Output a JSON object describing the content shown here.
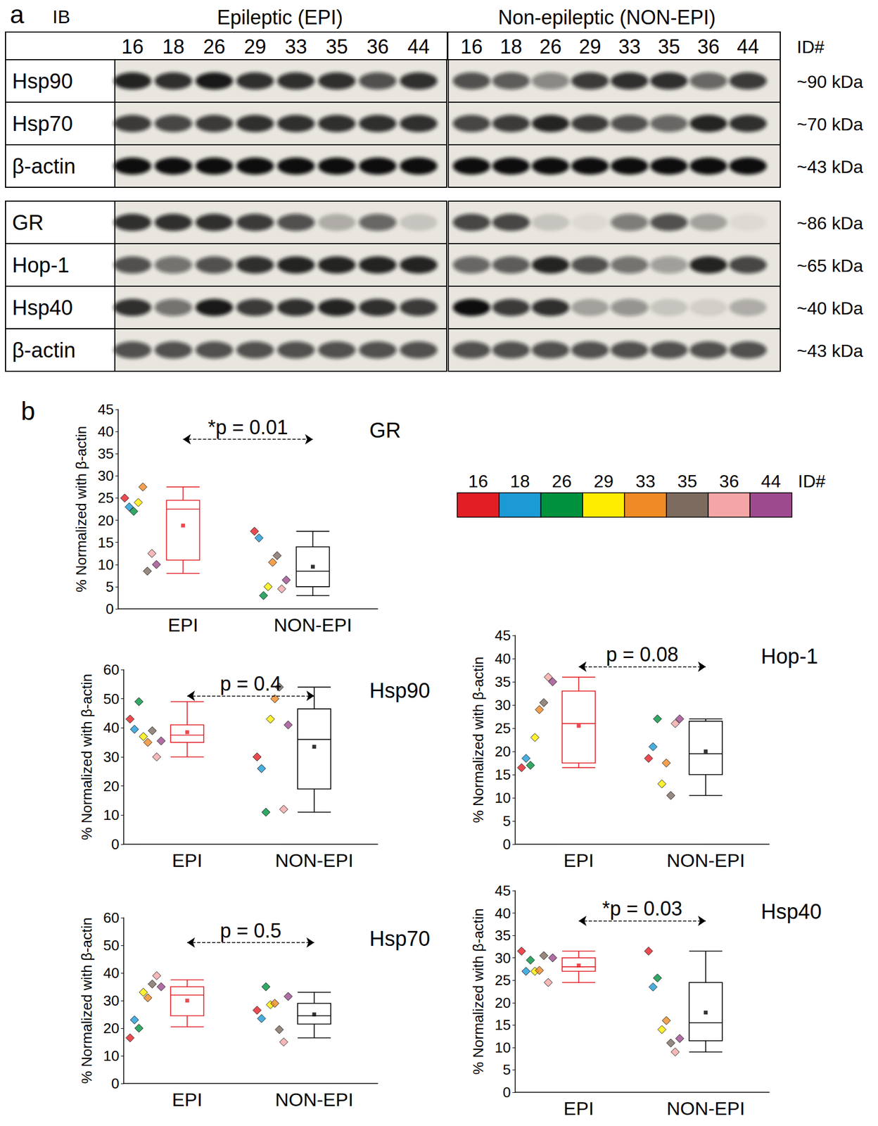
{
  "panel_labels": [
    "a",
    "b"
  ],
  "id_key": {
    "title": "ID#",
    "ids": [
      "16",
      "18",
      "26",
      "29",
      "33",
      "35",
      "36",
      "44"
    ],
    "colors": [
      "#e31e24",
      "#1c9ad6",
      "#00913f",
      "#ffed00",
      "#f08a24",
      "#7d6b5f",
      "#f4a6a6",
      "#9e4a8e"
    ]
  },
  "blot": {
    "ib": "IB",
    "groups": [
      "Epileptic (EPI)",
      "Non-epileptic (NON-EPI)"
    ],
    "id_header": "ID#",
    "blocks": [
      {
        "rows": [
          {
            "name": "Hsp90",
            "size": "~90 kDa",
            "bands": [
              [
                0.9,
                0.85,
                0.95,
                0.85,
                0.85,
                0.85,
                0.7,
                0.85
              ],
              [
                0.7,
                0.65,
                0.45,
                0.8,
                0.85,
                0.85,
                0.6,
                0.8
              ]
            ]
          },
          {
            "name": "Hsp70",
            "size": "~70 kDa",
            "bands": [
              [
                0.8,
                0.75,
                0.8,
                0.85,
                0.85,
                0.85,
                0.85,
                0.85
              ],
              [
                0.75,
                0.8,
                0.9,
                0.8,
                0.7,
                0.6,
                0.9,
                0.85
              ]
            ]
          },
          {
            "name": "β-actin",
            "size": "~43 kDa",
            "bands": [
              [
                1,
                1,
                1,
                1,
                1,
                1,
                1,
                1
              ],
              [
                1,
                1,
                1,
                1,
                1,
                1,
                1,
                1
              ]
            ]
          }
        ]
      },
      {
        "rows": [
          {
            "name": "GR",
            "size": "~86 kDa",
            "bands": [
              [
                0.85,
                0.85,
                0.85,
                0.8,
                0.7,
                0.25,
                0.6,
                0.15
              ],
              [
                0.75,
                0.75,
                0.15,
                0.05,
                0.5,
                0.7,
                0.3,
                0.05
              ]
            ]
          },
          {
            "name": "Hop-1",
            "size": "~65 kDa",
            "bands": [
              [
                0.7,
                0.55,
                0.7,
                0.85,
                0.9,
                0.9,
                0.9,
                0.9
              ],
              [
                0.6,
                0.65,
                0.9,
                0.7,
                0.55,
                0.35,
                0.9,
                0.75
              ]
            ]
          },
          {
            "name": "Hsp40",
            "size": "~40 kDa",
            "bands": [
              [
                0.85,
                0.55,
                0.95,
                0.8,
                0.85,
                0.9,
                0.85,
                0.8
              ],
              [
                1,
                0.8,
                0.85,
                0.3,
                0.4,
                0.15,
                0.1,
                0.25
              ]
            ]
          },
          {
            "name": "β-actin",
            "size": "~43 kDa",
            "bands": [
              [
                0.7,
                0.7,
                0.7,
                0.7,
                0.7,
                0.7,
                0.7,
                0.7
              ],
              [
                0.7,
                0.7,
                0.7,
                0.7,
                0.7,
                0.7,
                0.7,
                0.7
              ]
            ]
          }
        ]
      }
    ]
  },
  "chart_data": [
    {
      "type": "boxplot",
      "title": "GR",
      "annotation": "*p = 0.01",
      "y_label": "% Normalized with β-actin",
      "categories": [
        "EPI",
        "NON-EPI"
      ],
      "colors": [
        "#e41e26",
        "#000000"
      ],
      "marker": "diamond",
      "grid": false,
      "ylim": [
        0,
        45
      ],
      "yticks": [
        0,
        5,
        10,
        15,
        20,
        25,
        30,
        35,
        40,
        45
      ],
      "boxes": [
        {
          "min": 8,
          "q1": 11,
          "median": 22.5,
          "q3": 24.5,
          "max": 27.5,
          "mean": 18.8
        },
        {
          "min": 3,
          "q1": 5,
          "median": 8.5,
          "q3": 14,
          "max": 17.5,
          "mean": 9.5
        }
      ],
      "points": [
        [
          25,
          23,
          22,
          24,
          27.5,
          8.5,
          12.5,
          10
        ],
        [
          17.5,
          16,
          3,
          5,
          10.5,
          12,
          4.5,
          6.5
        ]
      ]
    },
    {
      "type": "boxplot",
      "title": "Hsp90",
      "annotation": "p = 0.4",
      "y_label": "% Normalized with β-actin",
      "categories": [
        "EPI",
        "NON-EPI"
      ],
      "colors": [
        "#e41e26",
        "#000000"
      ],
      "marker": "diamond",
      "grid": false,
      "ylim": [
        0,
        60
      ],
      "yticks": [
        0,
        10,
        20,
        30,
        40,
        50,
        60
      ],
      "boxes": [
        {
          "min": 30,
          "q1": 35,
          "median": 37.5,
          "q3": 41,
          "max": 49,
          "mean": 38.5
        },
        {
          "min": 11,
          "q1": 19,
          "median": 36,
          "q3": 46.5,
          "max": 54,
          "mean": 33.5
        }
      ],
      "points": [
        [
          43,
          39.5,
          49,
          37,
          35,
          39,
          30,
          35.5
        ],
        [
          30,
          26,
          11,
          43,
          50,
          54,
          12,
          41
        ]
      ]
    },
    {
      "type": "boxplot",
      "title": "Hop-1",
      "annotation": "p = 0.08",
      "y_label": "% Normalized with β-actin",
      "categories": [
        "EPI",
        "NON-EPI"
      ],
      "colors": [
        "#e41e26",
        "#000000"
      ],
      "marker": "diamond",
      "grid": false,
      "ylim": [
        0,
        45
      ],
      "yticks": [
        0,
        5,
        10,
        15,
        20,
        25,
        30,
        35,
        40,
        45
      ],
      "boxes": [
        {
          "min": 16.5,
          "q1": 17.5,
          "median": 26,
          "q3": 33,
          "max": 36,
          "mean": 25.5
        },
        {
          "min": 10.5,
          "q1": 15,
          "median": 19.5,
          "q3": 26.5,
          "max": 27,
          "mean": 20
        }
      ],
      "points": [
        [
          16.5,
          18.5,
          17,
          23,
          29,
          30.5,
          36,
          35
        ],
        [
          18.5,
          21,
          27,
          13,
          17.5,
          10.5,
          26,
          27
        ]
      ]
    },
    {
      "type": "boxplot",
      "title": "Hsp70",
      "annotation": "p = 0.5",
      "y_label": "% Normalized with β-actin",
      "categories": [
        "EPI",
        "NON-EPI"
      ],
      "colors": [
        "#e41e26",
        "#000000"
      ],
      "marker": "diamond",
      "grid": false,
      "ylim": [
        0,
        60
      ],
      "yticks": [
        0,
        10,
        20,
        30,
        40,
        50,
        60
      ],
      "boxes": [
        {
          "min": 20.5,
          "q1": 24.5,
          "median": 32,
          "q3": 35,
          "max": 37.5,
          "mean": 30
        },
        {
          "min": 16.5,
          "q1": 21.5,
          "median": 24.5,
          "q3": 29,
          "max": 33,
          "mean": 25
        }
      ],
      "points": [
        [
          16.5,
          23,
          20,
          33,
          31,
          36,
          39,
          35
        ],
        [
          26.5,
          23.5,
          35,
          28.5,
          29,
          19.5,
          15,
          31.5
        ]
      ]
    },
    {
      "type": "boxplot",
      "title": "Hsp40",
      "annotation": "*p = 0.03",
      "y_label": "% Normalized with β-actin",
      "categories": [
        "EPI",
        "NON-EPI"
      ],
      "colors": [
        "#e41e26",
        "#000000"
      ],
      "marker": "diamond",
      "grid": false,
      "ylim": [
        0,
        45
      ],
      "yticks": [
        0,
        5,
        10,
        15,
        20,
        25,
        30,
        35,
        40,
        45
      ],
      "boxes": [
        {
          "min": 24.5,
          "q1": 27,
          "median": 28,
          "q3": 30,
          "max": 31.5,
          "mean": 28.3
        },
        {
          "min": 9,
          "q1": 11.5,
          "median": 15.5,
          "q3": 24.5,
          "max": 31.5,
          "mean": 17.8
        }
      ],
      "points": [
        [
          31.5,
          27,
          29.5,
          27,
          27.2,
          30.5,
          24.5,
          30
        ],
        [
          31.5,
          23.5,
          25.5,
          14,
          16,
          11,
          9,
          12
        ]
      ]
    }
  ]
}
